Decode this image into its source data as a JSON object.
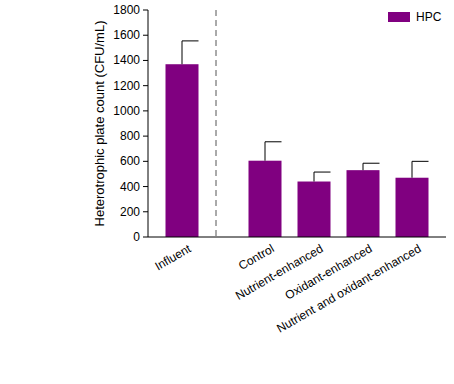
{
  "chart_data": {
    "type": "bar",
    "y_label": "Heterotrophic plate count (CFU/mL)",
    "categories": [
      "Influent",
      "Control",
      "Nutrient-enhanced",
      "Oxidant-enhanced",
      "Nutrient and oxidant-enhanced"
    ],
    "series": [
      {
        "name": "HPC",
        "color": "#800080",
        "values": [
          1370,
          605,
          440,
          530,
          470
        ],
        "errors": [
          185,
          150,
          75,
          55,
          130
        ]
      }
    ],
    "ylim": [
      0,
      1800
    ],
    "yticks": [
      0,
      200,
      400,
      600,
      800,
      1000,
      1200,
      1400,
      1600,
      1800
    ],
    "legend": "upper right"
  }
}
